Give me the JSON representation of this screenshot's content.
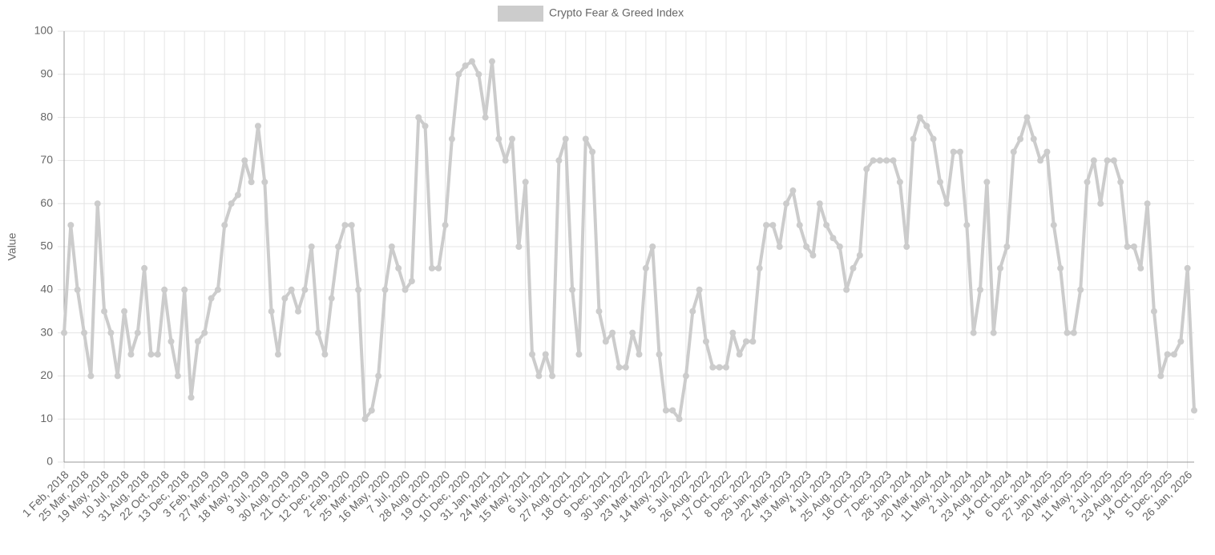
{
  "chart_data": {
    "type": "line",
    "series": [
      {
        "name": "Crypto Fear & Greed Index",
        "color": "#cccccc",
        "values": [
          30,
          55,
          40,
          30,
          20,
          60,
          35,
          30,
          20,
          35,
          25,
          30,
          45,
          25,
          25,
          40,
          28,
          20,
          40,
          15,
          28,
          30,
          38,
          40,
          55,
          60,
          62,
          70,
          65,
          78,
          65,
          35,
          25,
          38,
          40,
          35,
          40,
          50,
          30,
          25,
          38,
          50,
          55,
          55,
          40,
          10,
          12,
          20,
          40,
          50,
          45,
          40,
          42,
          80,
          78,
          45,
          45,
          55,
          75,
          90,
          92,
          93,
          90,
          80,
          93,
          75,
          70,
          75,
          50,
          65,
          25,
          20,
          25,
          20,
          70,
          75,
          40,
          25,
          75,
          72,
          35,
          28,
          30,
          22,
          22,
          30,
          25,
          45,
          50,
          25,
          12,
          12,
          10,
          20,
          35,
          40,
          28,
          22,
          22,
          22,
          30,
          25,
          28,
          28,
          45,
          55,
          55,
          50,
          60,
          63,
          55,
          50,
          48,
          60,
          55,
          52,
          50,
          40,
          45,
          48,
          68,
          70,
          70,
          70,
          70,
          65,
          50,
          75,
          80,
          78,
          75,
          65,
          60,
          72,
          72,
          55,
          30,
          40,
          65,
          30,
          45,
          50,
          72,
          75,
          80,
          75,
          70,
          72,
          55,
          45,
          30,
          30,
          40,
          65,
          70,
          60,
          70,
          70,
          65,
          50,
          50,
          45,
          60,
          35,
          20,
          25,
          25,
          28,
          45,
          12
        ]
      }
    ],
    "categories": [
      "1 Feb, 2018",
      null,
      null,
      "25 Mar, 2018",
      null,
      null,
      "19 May, 2018",
      null,
      null,
      "10 Jul, 2018",
      null,
      null,
      "31 Aug, 2018",
      null,
      null,
      "22 Oct, 2018",
      null,
      null,
      "13 Dec, 2018",
      null,
      null,
      "3 Feb, 2019",
      null,
      null,
      "27 Mar, 2019",
      null,
      null,
      "18 May, 2019",
      null,
      null,
      "9 Jul, 2019",
      null,
      null,
      "30 Aug, 2019",
      null,
      null,
      "21 Oct, 2019",
      null,
      null,
      "12 Dec, 2019",
      null,
      null,
      "2 Feb, 2020",
      null,
      null,
      "25 Mar, 2020",
      null,
      null,
      "16 May, 2020",
      null,
      null,
      "7 Jul, 2020",
      null,
      null,
      "28 Aug, 2020",
      null,
      null,
      "19 Oct, 2020",
      null,
      null,
      "10 Dec, 2020",
      null,
      null,
      "31 Jan, 2021",
      null,
      null,
      "24 Mar, 2021",
      null,
      null,
      "15 May, 2021",
      null,
      null,
      "6 Jul, 2021",
      null,
      null,
      "27 Aug, 2021",
      null,
      null,
      "18 Oct, 2021",
      null,
      null,
      "9 Dec, 2021",
      null,
      null,
      "30 Jan, 2022",
      null,
      null,
      "23 Mar, 2022",
      null,
      null,
      "14 May, 2022",
      null,
      null,
      "5 Jul, 2022",
      null,
      null,
      "26 Aug, 2022",
      null,
      null,
      "17 Oct, 2022",
      null,
      null,
      "8 Dec, 2022",
      null,
      null,
      "29 Jan, 2023",
      null,
      null,
      "22 Mar, 2023",
      null,
      null,
      "13 May, 2023",
      null,
      null,
      "4 Jul, 2023",
      null,
      null,
      "25 Aug, 2023",
      null,
      null,
      "16 Oct, 2023",
      null,
      null,
      "7 Dec, 2023",
      null,
      null,
      "28 Jan, 2024",
      null,
      null,
      "20 Mar, 2024",
      null,
      null,
      "11 May, 2024",
      null,
      null,
      "2 Jul, 2024",
      null,
      null,
      "23 Aug, 2024",
      null,
      null,
      "14 Oct, 2024",
      null,
      null,
      "6 Dec, 2024",
      null,
      null,
      "27 Jan, 2025",
      null,
      null,
      "20 Mar, 2025",
      null,
      null,
      "11 May, 2025",
      null,
      null,
      "2 Jul, 2025",
      null,
      null,
      "23 Aug, 2025",
      null,
      null,
      "14 Oct, 2025",
      null,
      null,
      "5 Dec, 2025",
      null,
      null,
      "26 Jan, 2026",
      null
    ],
    "y_label": "Value",
    "ylim": [
      0,
      100
    ],
    "yticks": [
      0,
      10,
      20,
      30,
      40,
      50,
      60,
      70,
      80,
      90,
      100
    ],
    "grid": true,
    "legend": "top"
  }
}
